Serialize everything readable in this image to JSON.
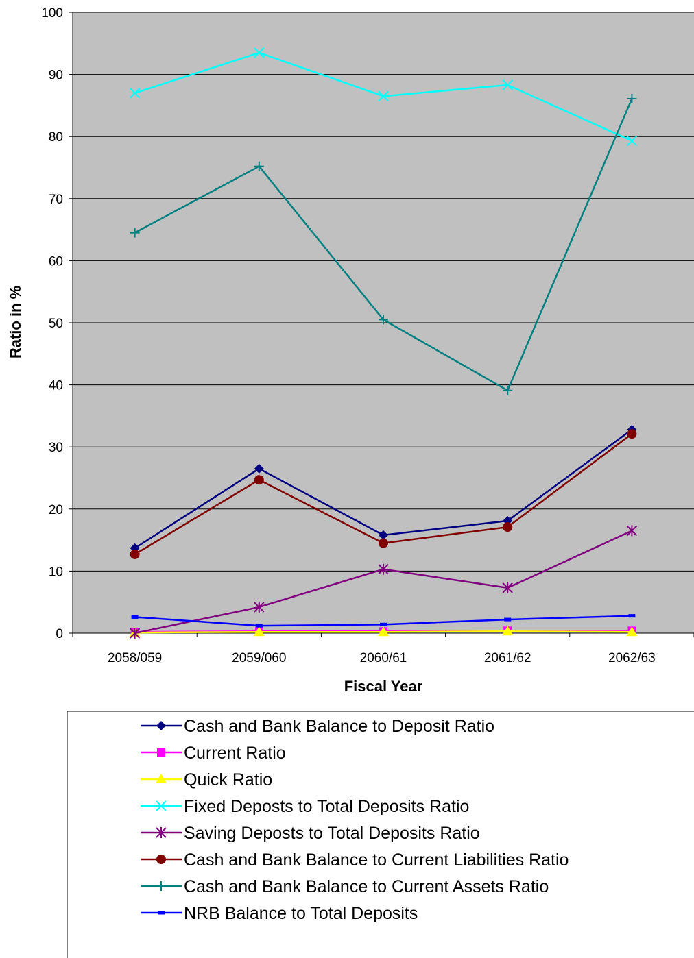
{
  "chart_data": {
    "type": "line",
    "title": "",
    "xlabel": "Fiscal Year",
    "ylabel": "Ratio in %",
    "categories": [
      "2058/059",
      "2059/060",
      "2060/61",
      "2061/62",
      "2062/63"
    ],
    "ylim": [
      0,
      100
    ],
    "yticks": [
      0,
      10,
      20,
      30,
      40,
      50,
      60,
      70,
      80,
      90,
      100
    ],
    "grid": true,
    "plot_background": "#c0c0c0",
    "legend_position": "bottom",
    "series": [
      {
        "name": "Cash and Bank Balance to Deposit Ratio",
        "values": [
          13.7,
          26.5,
          15.8,
          18.1,
          32.8
        ],
        "color": "#000080",
        "marker": "diamond"
      },
      {
        "name": "Current  Ratio",
        "values": [
          0.2,
          0.3,
          0.3,
          0.4,
          0.4
        ],
        "color": "#ff00ff",
        "marker": "square"
      },
      {
        "name": "Quick Ratio",
        "values": [
          0.1,
          0.2,
          0.2,
          0.3,
          0.2
        ],
        "color": "#ffff00",
        "marker": "triangle"
      },
      {
        "name": "Fixed Deposts to Total Deposits Ratio",
        "values": [
          87.0,
          93.5,
          86.5,
          88.3,
          79.3
        ],
        "color": "#00ffff",
        "marker": "x"
      },
      {
        "name": "Saving Deposts to Total Deposits Ratio",
        "values": [
          0.0,
          4.2,
          10.3,
          7.3,
          16.5
        ],
        "color": "#800080",
        "marker": "asterisk"
      },
      {
        "name": "Cash and Bank Balance to Current Liabilities Ratio",
        "values": [
          12.7,
          24.7,
          14.5,
          17.1,
          32.1
        ],
        "color": "#800000",
        "marker": "circle"
      },
      {
        "name": "Cash and Bank Balance to Current Assets Ratio",
        "values": [
          64.5,
          75.2,
          50.5,
          39.1,
          86.1
        ],
        "color": "#008080",
        "marker": "plus"
      },
      {
        "name": "NRB Balance to Total Deposits",
        "values": [
          2.6,
          1.2,
          1.4,
          2.2,
          2.8
        ],
        "color": "#0000ff",
        "marker": "dash"
      }
    ]
  }
}
